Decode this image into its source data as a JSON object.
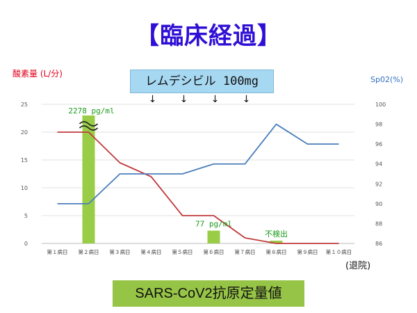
{
  "title": "【臨床経過】",
  "left_axis_label": "酸素量 (L/分)",
  "right_axis_label": "Sp02(%)",
  "drug_label": "レムデシビル 100mg",
  "arrow_glyph": "↓",
  "discharge_label": "(退院)",
  "antigen_label": "SARS-CoV2抗原定量値",
  "colors": {
    "oxygen": "#c0393b",
    "spo2": "#4a7ebb",
    "antigen": "#9acd47",
    "annotation": "#1a9a1a",
    "title": "#2f0fd6"
  },
  "chart_data": {
    "type": "line",
    "categories": [
      "第１病日",
      "第２病日",
      "第３病日",
      "第４病日",
      "第５病日",
      "第６病日",
      "第７病日",
      "第８病日",
      "第９病日",
      "第１０病日"
    ],
    "left_ylim": [
      0,
      25
    ],
    "left_yticks": [
      "0",
      "5",
      "10",
      "15",
      "20",
      "25"
    ],
    "right_ylim": [
      86,
      100
    ],
    "right_yticks": [
      "86",
      "88",
      "90",
      "92",
      "94",
      "96",
      "98",
      "100"
    ],
    "series": [
      {
        "axis": "left",
        "type": "line",
        "values": [
          20,
          20,
          14.5,
          12,
          5,
          5,
          1,
          0,
          0,
          0
        ]
      },
      {
        "axis": "right",
        "type": "line",
        "values": [
          90,
          90,
          93,
          93,
          93,
          94,
          94,
          98,
          96,
          96
        ]
      },
      {
        "axis": "left",
        "type": "bar",
        "values": [
          null,
          23,
          null,
          null,
          null,
          2.3,
          null,
          0.5,
          null,
          null
        ]
      }
    ],
    "remdesivir_days": [
      "第４病日",
      "第５病日",
      "第６病日",
      "第７病日"
    ],
    "annotations": [
      {
        "day": "第２病日",
        "text": "2278 pg/ml"
      },
      {
        "day": "第６病日",
        "text": "77 pg/ml"
      },
      {
        "day": "第８病日",
        "text": "不検出"
      }
    ],
    "grid": true
  }
}
